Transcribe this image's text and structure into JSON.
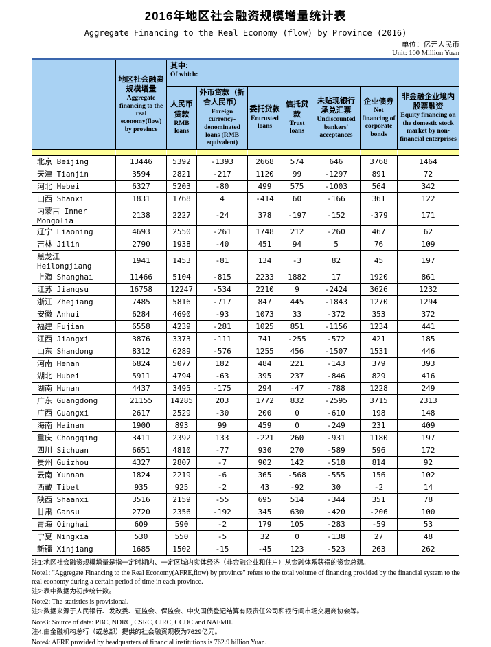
{
  "page": {
    "title": "2016年地区社会融资规模增量统计表",
    "subtitle": "Aggregate Financing to the Real Economy (flow)  by Province (2016)",
    "unit_zh": "单位：亿元人民币",
    "unit_en": "Unit: 100 Million Yuan"
  },
  "table": {
    "header": {
      "afre_zh": "地区社会融资规模增量",
      "afre_en": "Aggregate financing to the real economy(flow) by province",
      "of_which_zh": "其中:",
      "of_which_en": "Of which:",
      "columns": [
        {
          "zh": "人民币贷款",
          "en": "RMB loans"
        },
        {
          "zh": "外币贷款（折合人民币）",
          "en": "Foreign currency-denominated loans (RMB equivalent)"
        },
        {
          "zh": "委托贷款",
          "en": "Entrusted loans"
        },
        {
          "zh": "信托贷款",
          "en": "Trust loans"
        },
        {
          "zh": "未贴现银行承兑汇票",
          "en": "Undiscounted bankers' acceptances"
        },
        {
          "zh": "企业债券",
          "en": "Net financing of corporate bonds"
        },
        {
          "zh": "非金融企业境内股票融资",
          "en": "Equity financing on the domestic stock market by non-financial enterprises"
        }
      ]
    },
    "rows": [
      {
        "province": "北京 Beijing",
        "values": [
          13446,
          5392,
          -1393,
          2668,
          574,
          646,
          3768,
          1464
        ]
      },
      {
        "province": "天津 Tianjin",
        "values": [
          3594,
          2821,
          -217,
          1120,
          99,
          -1297,
          891,
          72
        ]
      },
      {
        "province": "河北 Hebei",
        "values": [
          6327,
          5203,
          -80,
          499,
          575,
          -1003,
          564,
          342
        ]
      },
      {
        "province": "山西 Shanxi",
        "values": [
          1831,
          1768,
          4,
          -414,
          60,
          -166,
          361,
          122
        ]
      },
      {
        "province": "内蒙古 Inner Mongolia",
        "values": [
          2138,
          2227,
          -24,
          378,
          -197,
          -152,
          -379,
          171
        ]
      },
      {
        "province": "辽宁 Liaoning",
        "values": [
          4693,
          2550,
          -261,
          1748,
          212,
          -260,
          467,
          62
        ]
      },
      {
        "province": "吉林 Jilin",
        "values": [
          2790,
          1938,
          -40,
          451,
          94,
          5,
          76,
          109
        ]
      },
      {
        "province": "黑龙江 Heilongjiang",
        "values": [
          1941,
          1453,
          -81,
          134,
          -3,
          82,
          45,
          197
        ]
      },
      {
        "province": "上海 Shanghai",
        "values": [
          11466,
          5104,
          -815,
          2233,
          1882,
          17,
          1920,
          861
        ]
      },
      {
        "province": "江苏 Jiangsu",
        "values": [
          16758,
          12247,
          -534,
          2210,
          9,
          -2424,
          3626,
          1232
        ]
      },
      {
        "province": "浙江 Zhejiang",
        "values": [
          7485,
          5816,
          -717,
          847,
          445,
          -1843,
          1270,
          1294
        ]
      },
      {
        "province": "安徽 Anhui",
        "values": [
          6284,
          4690,
          -93,
          1073,
          33,
          -372,
          353,
          372
        ]
      },
      {
        "province": "福建 Fujian",
        "values": [
          6558,
          4239,
          -281,
          1025,
          851,
          -1156,
          1234,
          441
        ]
      },
      {
        "province": "江西 Jiangxi",
        "values": [
          3876,
          3373,
          -111,
          741,
          -255,
          -572,
          421,
          185
        ]
      },
      {
        "province": "山东 Shandong",
        "values": [
          8312,
          6289,
          -576,
          1255,
          456,
          -1507,
          1531,
          446
        ]
      },
      {
        "province": "河南 Henan",
        "values": [
          6824,
          5077,
          182,
          484,
          221,
          -143,
          379,
          393
        ]
      },
      {
        "province": "湖北 Hubei",
        "values": [
          5911,
          4794,
          -63,
          395,
          237,
          -846,
          829,
          416
        ]
      },
      {
        "province": "湖南 Hunan",
        "values": [
          4437,
          3495,
          -175,
          294,
          -47,
          -788,
          1228,
          249
        ]
      },
      {
        "province": "广东 Guangdong",
        "values": [
          21155,
          14285,
          203,
          1772,
          832,
          -2595,
          3715,
          2313
        ]
      },
      {
        "province": "广西 Guangxi",
        "values": [
          2617,
          2529,
          -30,
          200,
          0,
          -610,
          198,
          148
        ]
      },
      {
        "province": "海南 Hainan",
        "values": [
          1900,
          893,
          99,
          459,
          0,
          -249,
          231,
          409
        ]
      },
      {
        "province": "重庆 Chongqing",
        "values": [
          3411,
          2392,
          133,
          -221,
          260,
          -931,
          1180,
          197
        ]
      },
      {
        "province": "四川 Sichuan",
        "values": [
          6651,
          4810,
          -77,
          930,
          270,
          -589,
          596,
          172
        ]
      },
      {
        "province": "贵州 Guizhou",
        "values": [
          4327,
          2807,
          -7,
          902,
          142,
          -518,
          814,
          92
        ]
      },
      {
        "province": "云南 Yunnan",
        "values": [
          1824,
          2219,
          -6,
          365,
          -568,
          -555,
          156,
          102
        ]
      },
      {
        "province": "西藏 Tibet",
        "values": [
          935,
          925,
          -2,
          43,
          -92,
          30,
          -2,
          14
        ]
      },
      {
        "province": "陕西 Shaanxi",
        "values": [
          3516,
          2159,
          -55,
          695,
          514,
          -344,
          351,
          78
        ]
      },
      {
        "province": "甘肃 Gansu",
        "values": [
          2720,
          2356,
          -192,
          345,
          630,
          -420,
          -206,
          100
        ]
      },
      {
        "province": "青海 Qinghai",
        "values": [
          609,
          590,
          -2,
          179,
          105,
          -283,
          -59,
          53
        ]
      },
      {
        "province": "宁夏 Ningxia",
        "values": [
          530,
          550,
          -5,
          32,
          0,
          -138,
          27,
          48
        ]
      },
      {
        "province": "新疆 Xinjiang",
        "values": [
          1685,
          1502,
          -15,
          -45,
          123,
          -523,
          263,
          262
        ]
      }
    ]
  },
  "notes": [
    {
      "lang": "zh",
      "text": "注1:地区社会融资规模增量是指一定时期内、一定区域内实体经济（非金融企业和住户）从金融体系获得的资金总额。"
    },
    {
      "lang": "en",
      "text": "Note1: \"Aggregate Financing to the Real Economy(AFRE,flow) by province\" refers to the total volume of financing provided by the financial system to the real economy during a certain period of time in each province."
    },
    {
      "lang": "zh",
      "text": "注2:表中数据为初步统计数。"
    },
    {
      "lang": "en",
      "text": "Note2: The statistics is provisional."
    },
    {
      "lang": "zh",
      "text": "注3:数据来源于人民银行、发改委、证监会、保监会、中央国债登记结算有限责任公司和银行间市场交易商协会等。"
    },
    {
      "lang": "en",
      "text": "Note3: Source of data: PBC, NDRC, CSRC, CIRC, CCDC and NAFMII."
    },
    {
      "lang": "zh",
      "text": "注4:由金融机构总行（或总部）提供的社会融资规模为7629亿元。"
    },
    {
      "lang": "en",
      "text": "Note4: AFRE provided by headquarters of financial institutions is 762.9 billion Yuan."
    }
  ],
  "colors": {
    "header_blue": "#a9d2f3",
    "separator_yellow": "#ffff99",
    "top_border_blue": "#3a66ad"
  }
}
